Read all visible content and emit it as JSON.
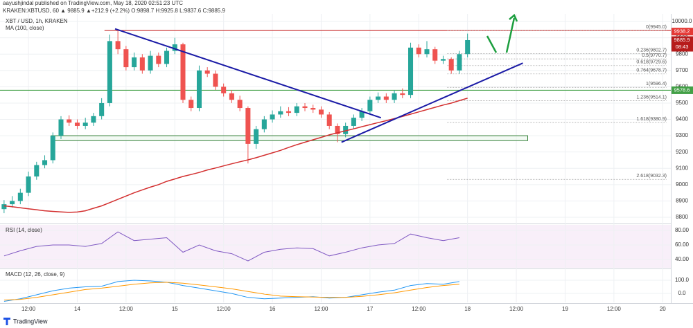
{
  "chart_data": {
    "type": "candlestick",
    "attribution": "aayushjindal published on TradingView.com, May 18, 2020 02:51:23 UTC",
    "quote": "KRAKEN:XBTUSD, 60 ▲ 9885.9 ▲+212.9 (+2.2%) O:9898.7 H:9925.8 L:9837.6 C:9885.9",
    "symbol_label": "XBT / USD, 1h, KRAKEN",
    "footer": "TradingView",
    "up_color": "#26a69a",
    "down_color": "#ef5350",
    "x": [
      6,
      8,
      10,
      12,
      14,
      16,
      18,
      20,
      22,
      24,
      26,
      28,
      30,
      32,
      34,
      36,
      38,
      40,
      42,
      44,
      46,
      48,
      50,
      52,
      54,
      56,
      58,
      60,
      62,
      64,
      66,
      68,
      70,
      72,
      74,
      76,
      78,
      80,
      82,
      84,
      86,
      88,
      90,
      92,
      94,
      96,
      98,
      100,
      102,
      104,
      106,
      108,
      110,
      112,
      114,
      116,
      118,
      120
    ],
    "open": [
      8850,
      8880,
      8900,
      8950,
      9050,
      9120,
      9150,
      9300,
      9400,
      9380,
      9360,
      9380,
      9420,
      9500,
      9880,
      9830,
      9720,
      9780,
      9700,
      9790,
      9740,
      9820,
      9860,
      9520,
      9470,
      9700,
      9680,
      9600,
      9560,
      9520,
      9470,
      9250,
      9340,
      9400,
      9430,
      9450,
      9440,
      9480,
      9470,
      9460,
      9430,
      9360,
      9310,
      9360,
      9410,
      9450,
      9520,
      9540,
      9520,
      9560,
      9550,
      9840,
      9800,
      9830,
      9760,
      9770,
      9700,
      9800
    ],
    "high": [
      8905,
      8930,
      8975,
      9080,
      9140,
      9180,
      9320,
      9420,
      9425,
      9400,
      9410,
      9440,
      9530,
      9920,
      9950,
      9850,
      9810,
      9800,
      9820,
      9810,
      9840,
      9900,
      9870,
      9540,
      9730,
      9720,
      9700,
      9620,
      9580,
      9545,
      9480,
      9360,
      9420,
      9455,
      9480,
      9475,
      9500,
      9500,
      9490,
      9480,
      9445,
      9375,
      9380,
      9430,
      9470,
      9540,
      9565,
      9560,
      9580,
      9590,
      9870,
      9860,
      9880,
      9845,
      9790,
      9780,
      9820,
      9925.8
    ],
    "low": [
      8825,
      8860,
      8880,
      8930,
      9030,
      9100,
      9130,
      9280,
      9360,
      9340,
      9340,
      9360,
      9400,
      9480,
      9800,
      9700,
      9700,
      9680,
      9680,
      9720,
      9720,
      9800,
      9500,
      9450,
      9450,
      9660,
      9580,
      9540,
      9500,
      9450,
      9130,
      9220,
      9320,
      9380,
      9410,
      9420,
      9420,
      9450,
      9440,
      9410,
      9340,
      9260,
      9290,
      9340,
      9390,
      9430,
      9500,
      9500,
      9500,
      9530,
      9530,
      9780,
      9780,
      9740,
      9740,
      9680,
      9680,
      9780
    ],
    "close": [
      8880,
      8900,
      8950,
      9050,
      9120,
      9150,
      9300,
      9400,
      9380,
      9360,
      9380,
      9420,
      9500,
      9880,
      9830,
      9720,
      9780,
      9700,
      9790,
      9740,
      9820,
      9860,
      9520,
      9470,
      9700,
      9680,
      9600,
      9560,
      9520,
      9470,
      9250,
      9340,
      9400,
      9430,
      9450,
      9440,
      9480,
      9470,
      9460,
      9430,
      9360,
      9310,
      9360,
      9410,
      9450,
      9520,
      9540,
      9520,
      9560,
      9550,
      9840,
      9800,
      9830,
      9760,
      9770,
      9700,
      9800,
      9885.9
    ],
    "ma": {
      "name": "MA (100, close)",
      "color": "#d32f2f",
      "values": [
        8870,
        8865,
        8858,
        8852,
        8846,
        8840,
        8836,
        8833,
        8830,
        8832,
        8840,
        8855,
        8870,
        8890,
        8910,
        8930,
        8950,
        8968,
        8985,
        9000,
        9020,
        9035,
        9050,
        9062,
        9075,
        9090,
        9102,
        9115,
        9128,
        9140,
        9152,
        9165,
        9180,
        9195,
        9210,
        9228,
        9245,
        9260,
        9275,
        9290,
        9305,
        9318,
        9330,
        9342,
        9355,
        9368,
        9380,
        9392,
        9405,
        9418,
        9432,
        9446,
        9460,
        9474,
        9488,
        9500,
        9515,
        9530
      ]
    },
    "xlim": [
      5,
      170
    ],
    "xticks": [
      {
        "value": 12,
        "label": "12:00"
      },
      {
        "value": 24,
        "label": "14"
      },
      {
        "value": 36,
        "label": "12:00"
      },
      {
        "value": 48,
        "label": "15"
      },
      {
        "value": 60,
        "label": "12:00"
      },
      {
        "value": 72,
        "label": "16"
      },
      {
        "value": 84,
        "label": "12:00"
      },
      {
        "value": 96,
        "label": "17"
      },
      {
        "value": 108,
        "label": "12:00"
      },
      {
        "value": 120,
        "label": "18"
      },
      {
        "value": 132,
        "label": "12:00"
      },
      {
        "value": 144,
        "label": "19"
      },
      {
        "value": 156,
        "label": "12:00"
      },
      {
        "value": 168,
        "label": "20"
      }
    ],
    "ylim": [
      8766,
      10047
    ],
    "yticks": [
      8800,
      8900,
      9000,
      9100,
      9200,
      9300,
      9400,
      9500,
      9600,
      9700,
      9800,
      9900,
      {
        "value": 10000,
        "label": "10000.0"
      }
    ],
    "grid": true,
    "resistance": {
      "value": 9945,
      "from": 30.7,
      "color": "#c62828"
    },
    "pivot_line": {
      "value": 9578.6,
      "color": "#43a047"
    },
    "support_zone": {
      "range": [
        9270,
        9300
      ],
      "from": 17.6,
      "to": 134.8,
      "color": "#2e7d32"
    },
    "trendlines": [
      {
        "color": "#1a1aa6",
        "points": [
          [
            33.3,
            9955
          ],
          [
            98.7,
            9410
          ]
        ]
      },
      {
        "color": "#1a1aa6",
        "points": [
          [
            89,
            9260
          ],
          [
            133.6,
            9745
          ]
        ]
      }
    ],
    "fib_from": 115,
    "fib_levels": [
      {
        "value": 9945.0,
        "label": "0(9945.0)"
      },
      {
        "value": 9802.7,
        "label": "0.236(9802.7)"
      },
      {
        "value": 9770.7,
        "label": "0.5(9770.7)"
      },
      {
        "value": 9729.6,
        "label": "0.618(9729.6)"
      },
      {
        "value": 9678.7,
        "label": "0.764(9678.7)"
      },
      {
        "value": 9596.4,
        "label": "1(9596.4)"
      },
      {
        "value": 9514.1,
        "label": "1.236(9514.1)"
      },
      {
        "value": 9380.9,
        "label": "1.618(9380.9)"
      },
      {
        "value": 9032.3,
        "label": "2.618(9032.3)"
      }
    ],
    "price_tags": [
      {
        "value": 9938.2,
        "color": "#e53935"
      },
      {
        "value": 9885.9,
        "color": "#b71c1c",
        "countdown": "08:43"
      },
      {
        "value": 9578.6,
        "color": "#43a047"
      }
    ],
    "rsi": {
      "name": "RSI (14, close)",
      "color": "#7e57c2",
      "x": [
        6,
        10,
        14,
        18,
        22,
        26,
        30,
        34,
        38,
        42,
        46,
        50,
        54,
        58,
        62,
        66,
        70,
        74,
        78,
        82,
        86,
        90,
        94,
        98,
        102,
        106,
        110,
        114,
        118
      ],
      "values": [
        45,
        52,
        58,
        60,
        60,
        58,
        62,
        78,
        66,
        68,
        70,
        50,
        60,
        52,
        48,
        38,
        50,
        54,
        56,
        55,
        45,
        50,
        56,
        60,
        62,
        75,
        70,
        66,
        70
      ],
      "ylim": [
        28.6,
        87.6
      ],
      "yticks": [
        {
          "value": 80,
          "label": "80.00"
        },
        {
          "value": 60,
          "label": "60.00"
        },
        {
          "value": 40,
          "label": "40.00"
        }
      ]
    },
    "macd": {
      "name": "MACD (12, 26, close, 9)",
      "x": [
        6,
        10,
        14,
        18,
        22,
        26,
        30,
        34,
        38,
        42,
        46,
        50,
        54,
        58,
        62,
        66,
        70,
        74,
        78,
        82,
        86,
        90,
        94,
        98,
        102,
        106,
        110,
        114,
        118
      ],
      "series": [
        {
          "color": "#2196f3",
          "values": [
            -60,
            -40,
            -10,
            20,
            40,
            50,
            55,
            90,
            100,
            95,
            85,
            60,
            40,
            20,
            0,
            -30,
            -40,
            -35,
            -30,
            -25,
            -35,
            -30,
            -10,
            10,
            25,
            60,
            75,
            70,
            90
          ]
        },
        {
          "color": "#ff9800",
          "values": [
            -50,
            -45,
            -30,
            -10,
            10,
            30,
            40,
            55,
            70,
            80,
            85,
            78,
            65,
            50,
            35,
            15,
            -5,
            -20,
            -25,
            -27,
            -30,
            -30,
            -22,
            -10,
            5,
            25,
            45,
            60,
            70
          ]
        }
      ],
      "ylim": [
        -68,
        179
      ],
      "yticks": [
        {
          "value": 100,
          "label": "100.0"
        },
        {
          "value": 0,
          "label": "0.0"
        }
      ]
    }
  }
}
